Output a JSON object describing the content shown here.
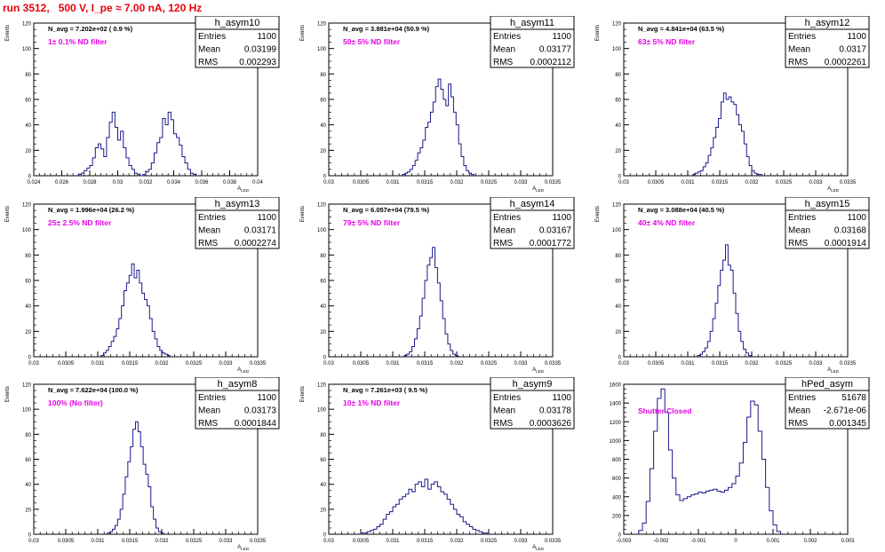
{
  "header": {
    "title": "run 3512,   500 V, I_pe ≈ 7.00 nA, 120 Hz"
  },
  "colors": {
    "hist_line": "#1a1a8c",
    "annotation_magenta": "#e600e6",
    "title_red": "#e8000b",
    "axis": "#000000"
  },
  "chart_data": [
    {
      "type": "bar",
      "name": "h_asym10",
      "ylabel": "Events",
      "xlabel": "A_{LED}",
      "xlim": [
        0.024,
        0.04
      ],
      "ylim": [
        0,
        120
      ],
      "xticks": [
        "0.024",
        "0.026",
        "0.028",
        "0.03",
        "0.032",
        "0.034",
        "0.036",
        "0.038",
        "0.04"
      ],
      "yticks": [
        "0",
        "20",
        "40",
        "60",
        "80",
        "100",
        "120"
      ],
      "navg": "N_avg = 7.202e+02 ( 0.9 %)",
      "filter": "1± 0.1% ND filter",
      "stats": {
        "entries": "1100",
        "mean": "0.03199",
        "rms": "0.002293"
      },
      "bins": {
        "x0": 0.0272,
        "width": 0.0002,
        "values": [
          1,
          2,
          4,
          6,
          8,
          14,
          22,
          25,
          21,
          15,
          30,
          42,
          50,
          38,
          28,
          35,
          22,
          14,
          8,
          5,
          2,
          1,
          0,
          1,
          3,
          5,
          10,
          18,
          26,
          30,
          45,
          40,
          50,
          44,
          33,
          30,
          24,
          15,
          10,
          5,
          2,
          1
        ]
      }
    },
    {
      "type": "bar",
      "name": "h_asym11",
      "ylabel": "Events",
      "xlabel": "A_{LED}",
      "xlim": [
        0.03,
        0.0335
      ],
      "ylim": [
        0,
        120
      ],
      "xticks": [
        "0.03",
        "0.0305",
        "0.031",
        "0.0315",
        "0.032",
        "0.0325",
        "0.033",
        "0.0335"
      ],
      "yticks": [
        "0",
        "20",
        "40",
        "60",
        "80",
        "100",
        "120"
      ],
      "navg": "N_avg = 3.881e+04 (50.9 %)",
      "filter": "50± 5% ND filter",
      "stats": {
        "entries": "1100",
        "mean": "0.03177",
        "rms": "0.0002112"
      },
      "bins": {
        "x0": 0.03115,
        "width": 4e-05,
        "values": [
          1,
          2,
          3,
          5,
          8,
          12,
          18,
          22,
          28,
          38,
          42,
          50,
          58,
          70,
          76,
          68,
          60,
          55,
          72,
          62,
          50,
          40,
          25,
          15,
          8,
          4,
          2,
          1
        ]
      }
    },
    {
      "type": "bar",
      "name": "h_asym12",
      "ylabel": "Events",
      "xlabel": "A_{LED}",
      "xlim": [
        0.03,
        0.0335
      ],
      "ylim": [
        0,
        120
      ],
      "xticks": [
        "0.03",
        "0.0305",
        "0.031",
        "0.0315",
        "0.032",
        "0.0325",
        "0.033",
        "0.0335"
      ],
      "yticks": [
        "0",
        "20",
        "40",
        "60",
        "80",
        "100",
        "120"
      ],
      "navg": "N_avg = 4.841e+04 (63.5 %)",
      "filter": "63± 5% ND filter",
      "stats": {
        "entries": "1100",
        "mean": "0.0317",
        "rms": "0.0002261"
      },
      "bins": {
        "x0": 0.03108,
        "width": 4e-05,
        "values": [
          1,
          2,
          3,
          4,
          7,
          10,
          16,
          22,
          30,
          38,
          45,
          58,
          65,
          60,
          62,
          58,
          56,
          48,
          40,
          35,
          25,
          15,
          8,
          4,
          2,
          1,
          1
        ]
      }
    },
    {
      "type": "bar",
      "name": "h_asym13",
      "ylabel": "Events",
      "xlabel": "A_{LED}",
      "xlim": [
        0.03,
        0.0335
      ],
      "ylim": [
        0,
        120
      ],
      "xticks": [
        "0.03",
        "0.0305",
        "0.031",
        "0.0315",
        "0.032",
        "0.0325",
        "0.033",
        "0.0335"
      ],
      "yticks": [
        "0",
        "20",
        "40",
        "60",
        "80",
        "100",
        "120"
      ],
      "navg": "N_avg = 1.996e+04 (26.2 %)",
      "filter": "25± 2.5% ND filter",
      "stats": {
        "entries": "1100",
        "mean": "0.03171",
        "rms": "0.0002274"
      },
      "bins": {
        "x0": 0.03105,
        "width": 4e-05,
        "values": [
          1,
          3,
          5,
          8,
          12,
          16,
          22,
          30,
          40,
          52,
          58,
          64,
          73,
          62,
          68,
          58,
          50,
          45,
          40,
          30,
          20,
          14,
          8,
          5,
          3,
          2,
          1
        ]
      }
    },
    {
      "type": "bar",
      "name": "h_asym14",
      "ylabel": "Events",
      "xlabel": "A_{LED}",
      "xlim": [
        0.03,
        0.0335
      ],
      "ylim": [
        0,
        120
      ],
      "xticks": [
        "0.03",
        "0.0305",
        "0.031",
        "0.0315",
        "0.032",
        "0.0325",
        "0.033",
        "0.0335"
      ],
      "yticks": [
        "0",
        "20",
        "40",
        "60",
        "80",
        "100",
        "120"
      ],
      "navg": "N_avg = 6.057e+04 (79.5 %)",
      "filter": "79± 5% ND filter",
      "stats": {
        "entries": "1100",
        "mean": "0.03167",
        "rms": "0.0001772"
      },
      "bins": {
        "x0": 0.03118,
        "width": 4e-05,
        "values": [
          1,
          2,
          4,
          8,
          14,
          22,
          32,
          46,
          60,
          72,
          78,
          86,
          70,
          58,
          44,
          30,
          18,
          10,
          5,
          2,
          1
        ]
      }
    },
    {
      "type": "bar",
      "name": "h_asym15",
      "ylabel": "Events",
      "xlabel": "A_{LED}",
      "xlim": [
        0.03,
        0.0335
      ],
      "ylim": [
        0,
        120
      ],
      "xticks": [
        "0.03",
        "0.0305",
        "0.031",
        "0.0315",
        "0.032",
        "0.0325",
        "0.033",
        "0.0335"
      ],
      "yticks": [
        "0",
        "20",
        "40",
        "60",
        "80",
        "100",
        "120"
      ],
      "navg": "N_avg = 3.088e+04 (40.5 %)",
      "filter": "40± 4% ND filter",
      "stats": {
        "entries": "1100",
        "mean": "0.03168",
        "rms": "0.0001914"
      },
      "bins": {
        "x0": 0.03115,
        "width": 4e-05,
        "values": [
          1,
          2,
          4,
          7,
          12,
          20,
          30,
          42,
          56,
          68,
          76,
          88,
          72,
          68,
          50,
          34,
          20,
          12,
          6,
          3,
          1
        ]
      }
    },
    {
      "type": "bar",
      "name": "h_asym8",
      "ylabel": "Events",
      "xlabel": "A_{LED}",
      "xlim": [
        0.03,
        0.0335
      ],
      "ylim": [
        0,
        120
      ],
      "xticks": [
        "0.03",
        "0.0305",
        "0.031",
        "0.0315",
        "0.032",
        "0.0325",
        "0.033",
        "0.0335"
      ],
      "yticks": [
        "0",
        "20",
        "40",
        "60",
        "80",
        "100",
        "120"
      ],
      "navg": "N_avg = 7.622e+04 (100.0 %)",
      "filter": "100% (No filter)",
      "stats": {
        "entries": "1100",
        "mean": "0.03173",
        "rms": "0.0001844"
      },
      "bins": {
        "x0": 0.03115,
        "width": 4e-05,
        "values": [
          1,
          2,
          4,
          7,
          12,
          20,
          32,
          46,
          58,
          70,
          84,
          90,
          82,
          70,
          56,
          48,
          38,
          22,
          12,
          5,
          2,
          1
        ]
      }
    },
    {
      "type": "bar",
      "name": "h_asym9",
      "ylabel": "Events",
      "xlabel": "A_{LED}",
      "xlim": [
        0.03,
        0.0335
      ],
      "ylim": [
        0,
        120
      ],
      "xticks": [
        "0.03",
        "0.0305",
        "0.031",
        "0.0315",
        "0.032",
        "0.0325",
        "0.033",
        "0.0335"
      ],
      "yticks": [
        "0",
        "20",
        "40",
        "60",
        "80",
        "100",
        "120"
      ],
      "navg": "N_avg = 7.261e+03 ( 9.5 %)",
      "filter": "10± 1% ND filter",
      "stats": {
        "entries": "1100",
        "mean": "0.03178",
        "rms": "0.0003626"
      },
      "bins": {
        "x0": 0.0305,
        "width": 5e-05,
        "values": [
          1,
          1,
          2,
          3,
          4,
          6,
          8,
          12,
          16,
          18,
          22,
          24,
          28,
          30,
          32,
          36,
          34,
          40,
          42,
          38,
          44,
          36,
          40,
          42,
          38,
          34,
          32,
          28,
          24,
          20,
          16,
          14,
          10,
          8,
          6,
          4,
          3,
          2,
          1,
          1
        ]
      }
    },
    {
      "type": "bar",
      "name": "hPed_asym",
      "ylabel": "",
      "xlabel": "",
      "xlim": [
        -0.003,
        0.003
      ],
      "ylim": [
        0,
        1600
      ],
      "xticks": [
        "-0.003",
        "-0.002",
        "-0.001",
        "0",
        "0.001",
        "0.002",
        "0.003"
      ],
      "yticks": [
        "0",
        "200",
        "400",
        "600",
        "800",
        "1000",
        "1200",
        "1400",
        "1600"
      ],
      "navg": "",
      "filter": "Shutter Closed",
      "stats": {
        "entries": "51678",
        "mean": "-2.671e-06",
        "rms": "0.001345"
      },
      "bins": {
        "x0": -0.0026,
        "width": 0.0001,
        "values": [
          40,
          120,
          350,
          700,
          1100,
          1450,
          1550,
          1300,
          900,
          600,
          420,
          360,
          380,
          400,
          420,
          430,
          450,
          440,
          460,
          470,
          480,
          460,
          450,
          470,
          500,
          540,
          620,
          760,
          980,
          1250,
          1420,
          1380,
          1100,
          800,
          500,
          250,
          100,
          30
        ]
      }
    }
  ]
}
